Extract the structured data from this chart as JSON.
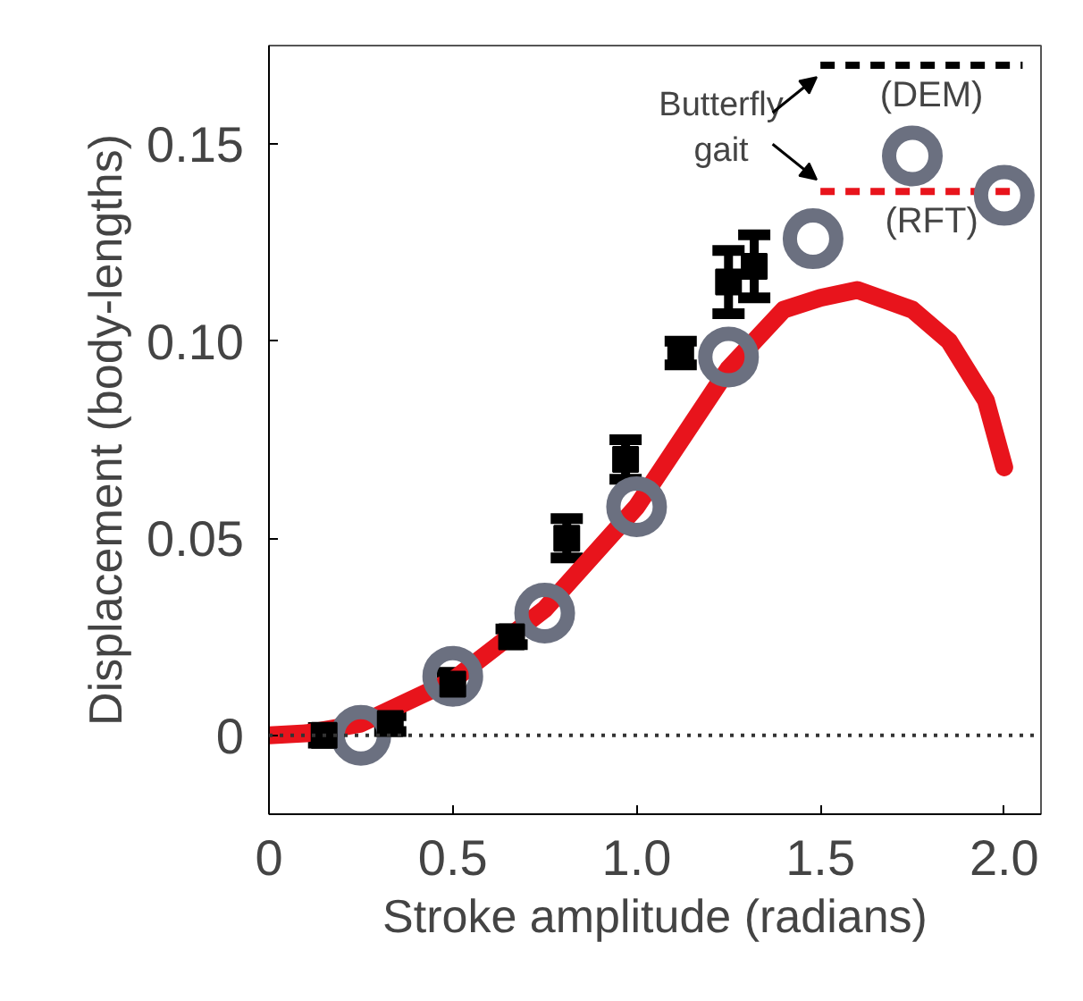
{
  "chart_data": {
    "type": "scatter",
    "xlabel": "Stroke amplitude (radians)",
    "ylabel": "Displacement (body-lengths)",
    "xlim": [
      0,
      2.1
    ],
    "ylim": [
      -0.02,
      0.175
    ],
    "xticks": [
      0,
      0.5,
      {
        "value": 1,
        "label": "1.0"
      },
      1.5,
      {
        "value": 2,
        "label": "2.0"
      }
    ],
    "yticks": [
      0,
      0.05,
      {
        "value": 0.1,
        "label": "0.10"
      },
      0.15
    ],
    "grid": false,
    "legend": "top right",
    "annotations": [
      "Butterfly gait"
    ],
    "ref_lines": [
      {
        "axis": "y",
        "value": 0,
        "label": null,
        "color": "#333333",
        "line_style": "dotted"
      }
    ],
    "series": [
      {
        "type": "line",
        "color": "#e8141c",
        "line_style": "solid",
        "marker": "none",
        "x": [
          0,
          0.1,
          0.25,
          0.5,
          0.75,
          1.0,
          1.25,
          1.4,
          1.5,
          1.6,
          1.75,
          1.85,
          1.95,
          2.0
        ],
        "values": [
          0,
          0.0005,
          0.003,
          0.014,
          0.032,
          0.058,
          0.093,
          0.108,
          0.111,
          0.113,
          0.108,
          0.1,
          0.085,
          0.068
        ]
      },
      {
        "type": "line",
        "name": "(DEM)",
        "color": "#000000",
        "line_style": "dashed",
        "marker": "none",
        "x": [
          1.5,
          2.05
        ],
        "values": [
          0.17,
          0.17
        ]
      },
      {
        "type": "line",
        "name": "(RFT)",
        "color": "#e8141c",
        "line_style": "dashed",
        "marker": "none",
        "x": [
          1.5,
          2.05
        ],
        "values": [
          0.138,
          0.138
        ]
      },
      {
        "color": "#6b7080",
        "marker": "circle",
        "x": [
          0.25,
          0.5,
          0.75,
          1.0,
          1.25,
          1.48,
          1.75,
          2.0
        ],
        "values": [
          0.0,
          0.015,
          0.031,
          0.058,
          0.096,
          0.126,
          0.147,
          0.137
        ]
      },
      {
        "color": "#000000",
        "marker": "square",
        "x": [
          0.15,
          0.33,
          0.5,
          0.66,
          0.81,
          0.97,
          1.12,
          1.25,
          1.32
        ],
        "values": [
          0.0,
          0.003,
          0.013,
          0.025,
          0.05,
          0.07,
          0.097,
          0.115,
          0.119
        ],
        "errors": [
          0.002,
          0.002,
          0.003,
          0.002,
          0.005,
          0.005,
          0.003,
          0.008,
          0.008
        ]
      }
    ]
  }
}
